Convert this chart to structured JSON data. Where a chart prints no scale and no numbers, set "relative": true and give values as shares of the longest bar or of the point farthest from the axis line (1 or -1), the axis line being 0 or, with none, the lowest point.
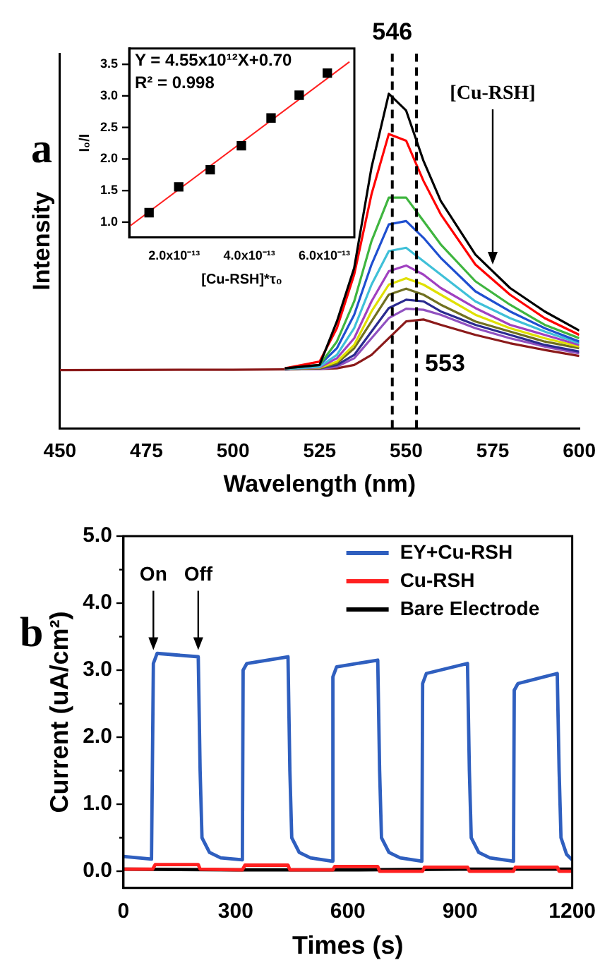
{
  "chart_data": [
    {
      "type": "line",
      "relative": true,
      "xlabel": "Wavelength (nm)",
      "ylabel": "Intensity",
      "x": [
        450,
        500,
        515,
        525,
        530,
        535,
        540,
        545,
        550,
        555,
        560,
        570,
        580,
        590,
        600
      ],
      "xlim": [
        450,
        600
      ],
      "xticks": [
        450,
        475,
        500,
        525,
        550,
        575,
        600
      ],
      "series": [
        {
          "color": "#000000",
          "values": [
            null,
            null,
            0.18,
            0.19,
            0.32,
            0.48,
            0.78,
            1.0,
            0.95,
            0.8,
            0.68,
            0.52,
            0.42,
            0.35,
            0.293
          ]
        },
        {
          "color": "#ff0000",
          "values": [
            null,
            null,
            0.18,
            0.2,
            0.3,
            0.46,
            0.7,
            0.88,
            0.86,
            0.74,
            0.64,
            0.49,
            0.4,
            0.33,
            0.28
          ]
        },
        {
          "color": "#3fb53f",
          "values": [
            null,
            null,
            0.18,
            0.19,
            0.26,
            0.38,
            0.56,
            0.69,
            0.69,
            0.62,
            0.55,
            0.44,
            0.37,
            0.31,
            0.27
          ]
        },
        {
          "color": "#1f4fd0",
          "values": [
            null,
            null,
            0.18,
            0.19,
            0.24,
            0.34,
            0.49,
            0.61,
            0.62,
            0.57,
            0.51,
            0.41,
            0.35,
            0.3,
            0.26
          ]
        },
        {
          "color": "#3fc0d8",
          "values": [
            null,
            null,
            0.178,
            0.185,
            0.22,
            0.3,
            0.43,
            0.53,
            0.54,
            0.5,
            0.46,
            0.38,
            0.33,
            0.29,
            0.255
          ]
        },
        {
          "color": "#a040c0",
          "values": [
            null,
            null,
            0.178,
            0.183,
            0.21,
            0.27,
            0.38,
            0.47,
            0.487,
            0.46,
            0.42,
            0.36,
            0.31,
            0.28,
            0.25
          ]
        },
        {
          "color": "#e0e000",
          "values": [
            null,
            null,
            0.178,
            0.182,
            0.2,
            0.25,
            0.35,
            0.43,
            0.449,
            0.43,
            0.4,
            0.34,
            0.3,
            0.27,
            0.245
          ]
        },
        {
          "color": "#707020",
          "values": [
            null,
            null,
            0.177,
            0.18,
            0.195,
            0.24,
            0.32,
            0.4,
            0.418,
            0.4,
            0.37,
            0.32,
            0.29,
            0.26,
            0.24
          ]
        },
        {
          "color": "#2a2a90",
          "values": [
            null,
            null,
            0.177,
            0.18,
            0.19,
            0.22,
            0.29,
            0.36,
            0.385,
            0.38,
            0.35,
            0.31,
            0.28,
            0.25,
            0.23
          ]
        },
        {
          "color": "#9050c0",
          "values": [
            null,
            null,
            0.177,
            0.178,
            0.185,
            0.21,
            0.27,
            0.33,
            0.358,
            0.355,
            0.34,
            0.3,
            0.27,
            0.245,
            0.225
          ]
        },
        {
          "color": "#8b1a1a",
          "values": [
            0.175,
            0.176,
            0.177,
            0.178,
            0.18,
            0.19,
            0.22,
            0.27,
            0.32,
            0.326,
            0.31,
            0.28,
            0.255,
            0.235,
            0.217
          ]
        }
      ],
      "ref_lines": [
        {
          "axis": "x",
          "value": 546,
          "label": "546",
          "line_style": "dashed"
        },
        {
          "axis": "x",
          "value": 553,
          "label": "553",
          "line_style": "dashed"
        }
      ],
      "annotations": [
        "a",
        {
          "text": "[Cu-RSH]",
          "x": 575,
          "y": 0.49
        }
      ]
    },
    {
      "type": "scatter",
      "xlabel": "[Cu-RSH]*τ₀",
      "ylabel": "I₀/I",
      "marker": "square",
      "xlim": [
        8e-14,
        6.8e-13
      ],
      "xticks": [
        {
          "value": 2e-13,
          "label": "2.0x10⁻¹³"
        },
        {
          "value": 4e-13,
          "label": "4.0x10⁻¹³"
        },
        {
          "value": 6e-13,
          "label": "6.0x10⁻¹³"
        }
      ],
      "ylim": [
        0.76,
        3.75
      ],
      "yticks": [
        {
          "value": 1,
          "label": "1.0"
        },
        1.5,
        {
          "value": 2,
          "label": "2.0"
        },
        2.5,
        {
          "value": 3,
          "label": "3.0"
        },
        3.5
      ],
      "series": [
        {
          "color": "#000000",
          "x": [
            1.33e-13,
            2.12e-13,
            2.96e-13,
            3.79e-13,
            4.58e-13,
            5.33e-13,
            6.08e-13
          ],
          "values": [
            1.15,
            1.56,
            1.83,
            2.21,
            2.65,
            3.01,
            3.36
          ]
        },
        {
          "type": "line",
          "marker": "none",
          "color": "#ff2020",
          "x": [
            8e-14,
            6.67e-13
          ],
          "values": [
            0.93,
            3.54
          ]
        }
      ],
      "annotations": [
        "Y = 4.55x10¹²X+0.70",
        "R² = 0.998"
      ]
    },
    {
      "type": "line",
      "xlabel": "Times (s)",
      "ylabel": "Current (uA/cm²)",
      "legend": "top right",
      "xlim": [
        0,
        1200
      ],
      "xticks": [
        0,
        300,
        600,
        900,
        1200
      ],
      "ylim": [
        -0.25,
        5.0
      ],
      "yticks": [
        {
          "value": 0,
          "label": "0.0"
        },
        {
          "value": 0.5,
          "label": null
        },
        {
          "value": 1,
          "label": "1.0"
        },
        {
          "value": 1.5,
          "label": null
        },
        {
          "value": 2,
          "label": "2.0"
        },
        {
          "value": 2.5,
          "label": null
        },
        {
          "value": 3,
          "label": "3.0"
        },
        {
          "value": 3.5,
          "label": null
        },
        {
          "value": 4,
          "label": "4.0"
        },
        {
          "value": 4.5,
          "label": null
        },
        {
          "value": 5,
          "label": "5.0"
        }
      ],
      "series": [
        {
          "name": "EY+Cu-RSH",
          "color": "#2f5fbf",
          "x": [
            0,
            75,
            80,
            90,
            200,
            205,
            210,
            230,
            260,
            318,
            320,
            330,
            440,
            445,
            450,
            470,
            500,
            558,
            560,
            570,
            680,
            685,
            690,
            710,
            740,
            798,
            800,
            810,
            920,
            925,
            930,
            950,
            980,
            1043,
            1045,
            1055,
            1160,
            1165,
            1170,
            1185,
            1200
          ],
          "values": [
            0.22,
            0.18,
            3.1,
            3.25,
            3.2,
            1.5,
            0.5,
            0.28,
            0.2,
            0.17,
            3.0,
            3.1,
            3.2,
            1.5,
            0.5,
            0.28,
            0.2,
            0.15,
            2.9,
            3.05,
            3.15,
            1.5,
            0.5,
            0.28,
            0.2,
            0.15,
            2.8,
            2.95,
            3.1,
            1.5,
            0.5,
            0.28,
            0.2,
            0.15,
            2.7,
            2.8,
            2.95,
            1.5,
            0.5,
            0.25,
            0.17
          ]
        },
        {
          "name": "Cu-RSH",
          "color": "#ff2020",
          "x": [
            0,
            78,
            85,
            200,
            205,
            318,
            325,
            440,
            445,
            560,
            565,
            680,
            685,
            800,
            805,
            920,
            925,
            1043,
            1048,
            1160,
            1165,
            1200
          ],
          "values": [
            0.03,
            0.03,
            0.1,
            0.1,
            0.03,
            0.02,
            0.09,
            0.09,
            0.02,
            0.02,
            0.07,
            0.07,
            0.0,
            0.0,
            0.06,
            0.06,
            0.0,
            0.0,
            0.06,
            0.06,
            0.0,
            0.0
          ]
        },
        {
          "name": "Bare Electrode",
          "color": "#000000",
          "x": [
            0,
            300,
            600,
            900,
            1200
          ],
          "values": [
            0.03,
            0.02,
            0.02,
            0.03,
            0.03
          ]
        }
      ],
      "annotations": [
        "b",
        {
          "text": "On",
          "x": 80,
          "y": 3.3
        },
        {
          "text": "Off",
          "x": 200,
          "y": 3.3
        }
      ]
    }
  ]
}
